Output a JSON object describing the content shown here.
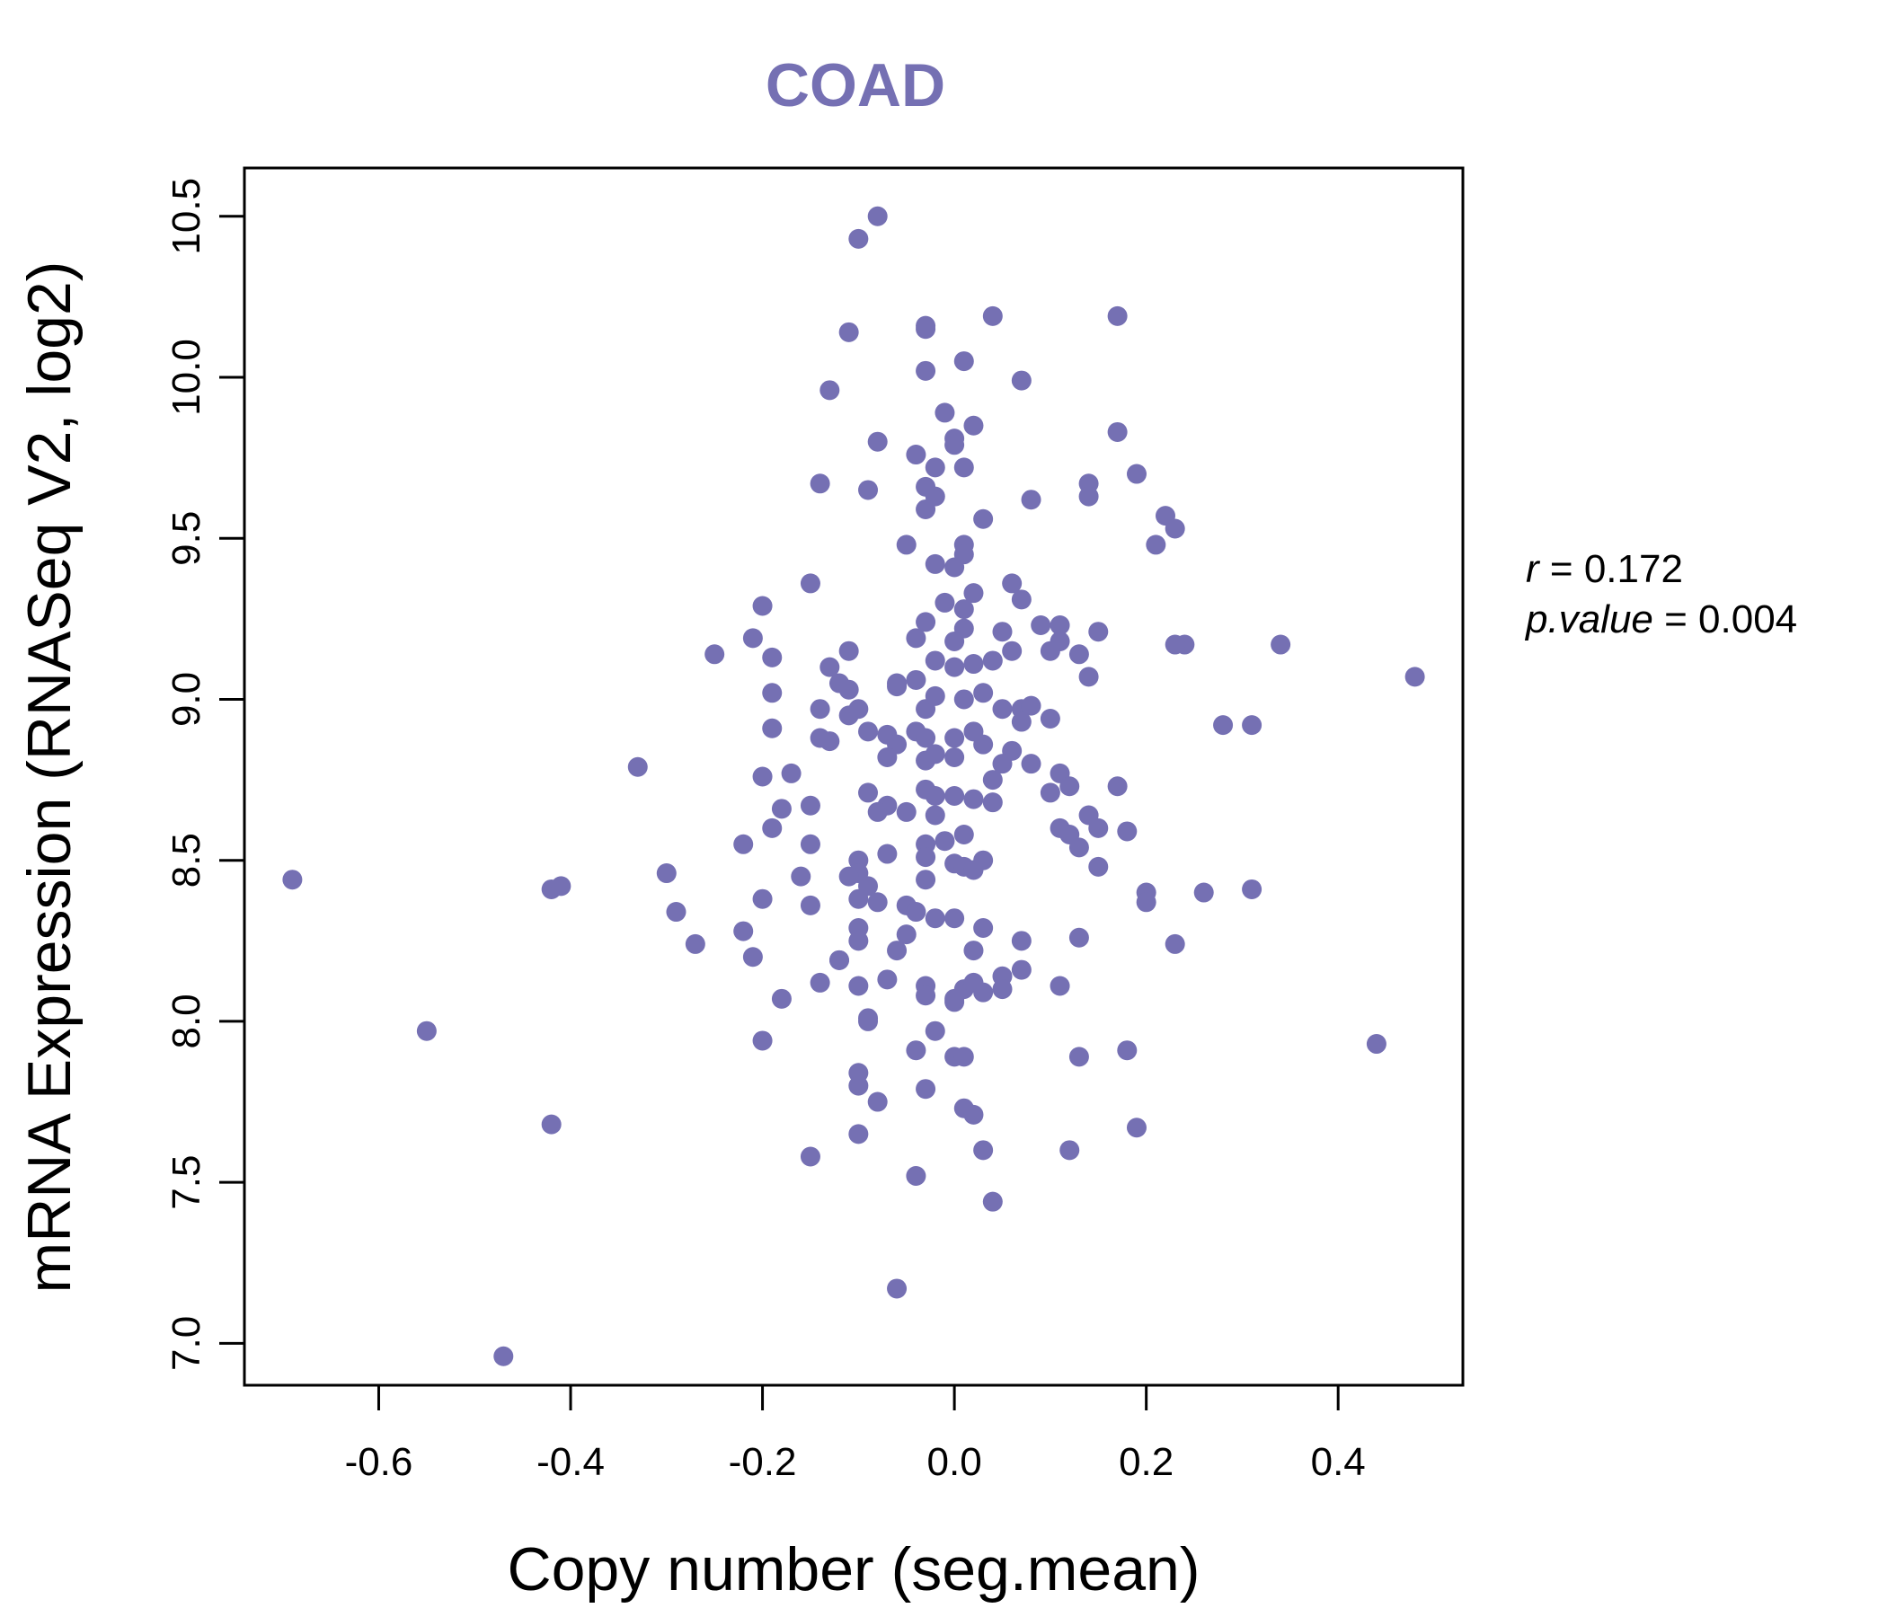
{
  "chart_data": {
    "type": "scatter",
    "title": "COAD",
    "xlabel": "Copy number (seg.mean)",
    "ylabel": "mRNA Expression (RNASeq V2, log2)",
    "xlim": [
      -0.74,
      0.53
    ],
    "ylim": [
      6.87,
      10.65
    ],
    "xticks": [
      -0.6,
      -0.4,
      -0.2,
      0.0,
      0.2,
      0.4
    ],
    "xtick_labels": [
      "-0.6",
      "-0.4",
      "-0.2",
      "0.0",
      "0.2",
      "0.4"
    ],
    "yticks": [
      7.0,
      7.5,
      8.0,
      8.5,
      9.0,
      9.5,
      10.0,
      10.5
    ],
    "ytick_labels": [
      "7.0",
      "7.5",
      "8.0",
      "8.5",
      "9.0",
      "9.5",
      "10.0",
      "10.5"
    ],
    "point_color": "#7570b3",
    "grid": false,
    "annotations": {
      "r_symbol": "r",
      "r_value": "0.172",
      "p_symbol": "p.value",
      "p_value": "0.004"
    },
    "points": [
      [
        -0.08,
        10.5
      ],
      [
        -0.1,
        10.43
      ],
      [
        -0.11,
        10.14
      ],
      [
        -0.03,
        10.16
      ],
      [
        -0.03,
        10.15
      ],
      [
        0.04,
        10.19
      ],
      [
        0.17,
        10.19
      ],
      [
        -0.03,
        10.02
      ],
      [
        0.01,
        10.05
      ],
      [
        0.07,
        9.99
      ],
      [
        -0.13,
        9.96
      ],
      [
        -0.01,
        9.89
      ],
      [
        0.02,
        9.85
      ],
      [
        0.0,
        9.81
      ],
      [
        -0.08,
        9.8
      ],
      [
        0.0,
        9.79
      ],
      [
        0.17,
        9.83
      ],
      [
        -0.04,
        9.76
      ],
      [
        -0.02,
        9.72
      ],
      [
        0.01,
        9.72
      ],
      [
        0.19,
        9.7
      ],
      [
        -0.14,
        9.67
      ],
      [
        -0.09,
        9.65
      ],
      [
        -0.03,
        9.66
      ],
      [
        -0.02,
        9.63
      ],
      [
        -0.03,
        9.59
      ],
      [
        0.14,
        9.67
      ],
      [
        0.14,
        9.63
      ],
      [
        0.08,
        9.62
      ],
      [
        0.03,
        9.56
      ],
      [
        0.22,
        9.57
      ],
      [
        0.23,
        9.53
      ],
      [
        0.21,
        9.48
      ],
      [
        -0.05,
        9.48
      ],
      [
        0.01,
        9.48
      ],
      [
        0.01,
        9.45
      ],
      [
        -0.02,
        9.42
      ],
      [
        0.0,
        9.41
      ],
      [
        -0.15,
        9.36
      ],
      [
        0.06,
        9.36
      ],
      [
        0.07,
        9.31
      ],
      [
        0.02,
        9.33
      ],
      [
        -0.01,
        9.3
      ],
      [
        0.01,
        9.28
      ],
      [
        -0.2,
        9.29
      ],
      [
        -0.03,
        9.24
      ],
      [
        0.01,
        9.22
      ],
      [
        -0.04,
        9.19
      ],
      [
        0.0,
        9.18
      ],
      [
        0.05,
        9.21
      ],
      [
        0.09,
        9.23
      ],
      [
        0.11,
        9.23
      ],
      [
        0.11,
        9.18
      ],
      [
        0.15,
        9.21
      ],
      [
        0.24,
        9.17
      ],
      [
        0.23,
        9.17
      ],
      [
        0.34,
        9.17
      ],
      [
        0.48,
        9.07
      ],
      [
        -0.21,
        9.19
      ],
      [
        -0.25,
        9.14
      ],
      [
        -0.19,
        9.13
      ],
      [
        -0.11,
        9.15
      ],
      [
        -0.13,
        9.1
      ],
      [
        -0.12,
        9.05
      ],
      [
        -0.11,
        9.03
      ],
      [
        -0.02,
        9.12
      ],
      [
        0.0,
        9.1
      ],
      [
        0.02,
        9.11
      ],
      [
        0.04,
        9.12
      ],
      [
        0.06,
        9.15
      ],
      [
        0.1,
        9.15
      ],
      [
        0.13,
        9.14
      ],
      [
        0.14,
        9.07
      ],
      [
        -0.04,
        9.06
      ],
      [
        -0.06,
        9.05
      ],
      [
        -0.06,
        9.04
      ],
      [
        -0.19,
        9.02
      ],
      [
        -0.14,
        8.97
      ],
      [
        -0.11,
        8.95
      ],
      [
        -0.1,
        8.97
      ],
      [
        -0.03,
        8.97
      ],
      [
        -0.02,
        9.01
      ],
      [
        0.01,
        9.0
      ],
      [
        0.03,
        9.02
      ],
      [
        0.05,
        8.97
      ],
      [
        0.07,
        8.97
      ],
      [
        0.08,
        8.98
      ],
      [
        0.1,
        8.94
      ],
      [
        0.07,
        8.93
      ],
      [
        0.28,
        8.92
      ],
      [
        0.31,
        8.92
      ],
      [
        -0.19,
        8.91
      ],
      [
        -0.14,
        8.88
      ],
      [
        -0.13,
        8.87
      ],
      [
        -0.09,
        8.9
      ],
      [
        -0.07,
        8.89
      ],
      [
        -0.06,
        8.86
      ],
      [
        -0.04,
        8.9
      ],
      [
        -0.03,
        8.88
      ],
      [
        0.0,
        8.88
      ],
      [
        0.02,
        8.9
      ],
      [
        0.03,
        8.86
      ],
      [
        0.06,
        8.84
      ],
      [
        -0.33,
        8.79
      ],
      [
        -0.2,
        8.76
      ],
      [
        -0.17,
        8.77
      ],
      [
        -0.07,
        8.82
      ],
      [
        -0.03,
        8.81
      ],
      [
        -0.02,
        8.83
      ],
      [
        0.0,
        8.82
      ],
      [
        0.05,
        8.8
      ],
      [
        0.08,
        8.8
      ],
      [
        0.04,
        8.75
      ],
      [
        0.11,
        8.77
      ],
      [
        0.12,
        8.73
      ],
      [
        0.17,
        8.73
      ],
      [
        -0.09,
        8.71
      ],
      [
        -0.07,
        8.67
      ],
      [
        -0.05,
        8.65
      ],
      [
        -0.03,
        8.72
      ],
      [
        -0.02,
        8.7
      ],
      [
        0.0,
        8.7
      ],
      [
        0.02,
        8.69
      ],
      [
        0.04,
        8.68
      ],
      [
        0.1,
        8.71
      ],
      [
        -0.18,
        8.66
      ],
      [
        -0.15,
        8.67
      ],
      [
        -0.08,
        8.65
      ],
      [
        -0.02,
        8.64
      ],
      [
        0.14,
        8.64
      ],
      [
        0.15,
        8.6
      ],
      [
        0.11,
        8.6
      ],
      [
        0.12,
        8.58
      ],
      [
        0.18,
        8.59
      ],
      [
        0.13,
        8.54
      ],
      [
        -0.19,
        8.6
      ],
      [
        -0.22,
        8.55
      ],
      [
        -0.15,
        8.55
      ],
      [
        -0.07,
        8.52
      ],
      [
        -0.03,
        8.55
      ],
      [
        -0.01,
        8.56
      ],
      [
        0.01,
        8.58
      ],
      [
        -0.03,
        8.51
      ],
      [
        0.0,
        8.49
      ],
      [
        0.03,
        8.5
      ],
      [
        0.01,
        8.48
      ],
      [
        0.02,
        8.47
      ],
      [
        -0.1,
        8.5
      ],
      [
        -0.1,
        8.46
      ],
      [
        -0.11,
        8.45
      ],
      [
        -0.16,
        8.45
      ],
      [
        -0.03,
        8.44
      ],
      [
        0.15,
        8.48
      ],
      [
        -0.3,
        8.46
      ],
      [
        -0.69,
        8.44
      ],
      [
        -0.42,
        8.41
      ],
      [
        -0.41,
        8.42
      ],
      [
        -0.2,
        8.38
      ],
      [
        -0.15,
        8.36
      ],
      [
        -0.1,
        8.38
      ],
      [
        -0.09,
        8.42
      ],
      [
        -0.08,
        8.37
      ],
      [
        -0.05,
        8.36
      ],
      [
        -0.04,
        8.34
      ],
      [
        -0.02,
        8.32
      ],
      [
        0.0,
        8.32
      ],
      [
        0.2,
        8.4
      ],
      [
        0.2,
        8.37
      ],
      [
        0.26,
        8.4
      ],
      [
        0.31,
        8.41
      ],
      [
        -0.29,
        8.34
      ],
      [
        -0.22,
        8.28
      ],
      [
        -0.21,
        8.2
      ],
      [
        -0.27,
        8.24
      ],
      [
        -0.1,
        8.29
      ],
      [
        -0.1,
        8.25
      ],
      [
        -0.05,
        8.27
      ],
      [
        -0.06,
        8.22
      ],
      [
        0.02,
        8.22
      ],
      [
        0.03,
        8.29
      ],
      [
        0.07,
        8.25
      ],
      [
        0.13,
        8.26
      ],
      [
        0.23,
        8.24
      ],
      [
        -0.12,
        8.19
      ],
      [
        -0.12,
        8.19
      ],
      [
        -0.14,
        8.12
      ],
      [
        -0.1,
        8.11
      ],
      [
        -0.07,
        8.13
      ],
      [
        -0.03,
        8.11
      ],
      [
        -0.03,
        8.08
      ],
      [
        0.01,
        8.1
      ],
      [
        0.02,
        8.12
      ],
      [
        0.03,
        8.09
      ],
      [
        0.05,
        8.14
      ],
      [
        0.05,
        8.1
      ],
      [
        0.07,
        8.16
      ],
      [
        0.11,
        8.11
      ],
      [
        -0.18,
        8.07
      ],
      [
        0.0,
        8.06
      ],
      [
        0.0,
        8.07
      ],
      [
        -0.09,
        8.01
      ],
      [
        -0.09,
        8.0
      ],
      [
        -0.02,
        7.97
      ],
      [
        -0.55,
        7.97
      ],
      [
        -0.2,
        7.94
      ],
      [
        -0.04,
        7.91
      ],
      [
        0.0,
        7.89
      ],
      [
        0.01,
        7.89
      ],
      [
        0.13,
        7.89
      ],
      [
        0.18,
        7.91
      ],
      [
        0.44,
        7.93
      ],
      [
        -0.1,
        7.84
      ],
      [
        -0.1,
        7.8
      ],
      [
        -0.03,
        7.79
      ],
      [
        -0.08,
        7.75
      ],
      [
        0.01,
        7.73
      ],
      [
        0.02,
        7.71
      ],
      [
        -0.42,
        7.68
      ],
      [
        -0.1,
        7.65
      ],
      [
        0.19,
        7.67
      ],
      [
        -0.15,
        7.58
      ],
      [
        0.03,
        7.6
      ],
      [
        0.12,
        7.6
      ],
      [
        -0.04,
        7.52
      ],
      [
        0.04,
        7.44
      ],
      [
        -0.06,
        7.17
      ],
      [
        -0.47,
        6.96
      ]
    ]
  }
}
